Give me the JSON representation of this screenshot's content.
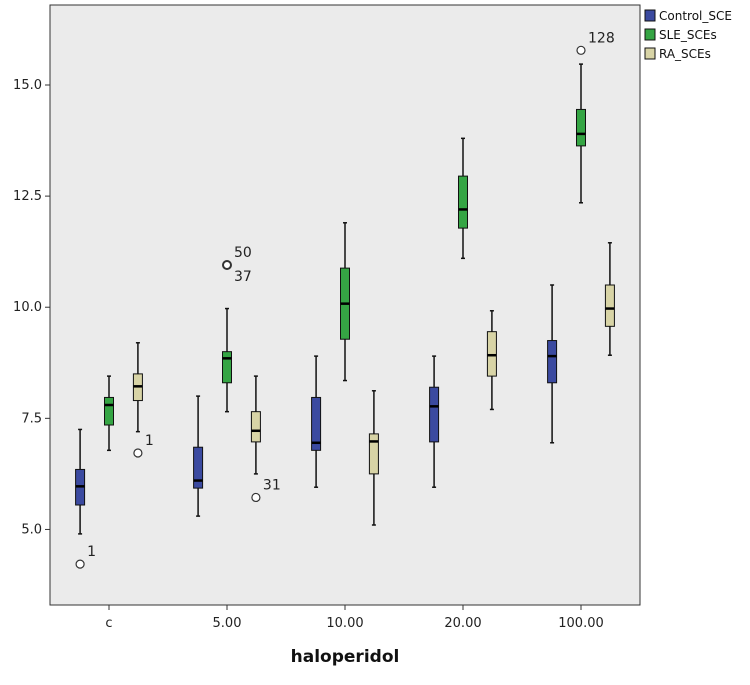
{
  "chart_data": {
    "type": "boxplot",
    "xlabel": "haloperidol",
    "ylabel": "",
    "ylim": [
      3.3,
      16.8
    ],
    "yticks": [
      "5.0",
      "7.5",
      "10.0",
      "12.5",
      "15.0"
    ],
    "ytick_values": [
      5.0,
      7.5,
      10.0,
      12.5,
      15.0
    ],
    "categories": [
      "c",
      "5.00",
      "10.00",
      "20.00",
      "100.00"
    ],
    "grid": false,
    "legend_position": "top-right",
    "plot_background": "#ebebeb",
    "series": [
      {
        "name": "Control_SCE",
        "color": "#3b4aa0",
        "boxes": [
          {
            "min": 4.9,
            "q1": 5.55,
            "median": 5.97,
            "q3": 6.35,
            "max": 7.25
          },
          {
            "min": 5.3,
            "q1": 5.93,
            "median": 6.1,
            "q3": 6.85,
            "max": 8.0
          },
          {
            "min": 5.95,
            "q1": 6.78,
            "median": 6.95,
            "q3": 7.97,
            "max": 8.9
          },
          {
            "min": 5.95,
            "q1": 6.97,
            "median": 7.77,
            "q3": 8.2,
            "max": 8.9
          },
          {
            "min": 6.95,
            "q1": 8.3,
            "median": 8.9,
            "q3": 9.25,
            "max": 10.5
          }
        ],
        "outliers": [
          {
            "category": "c",
            "value": 4.22,
            "label": "1"
          }
        ]
      },
      {
        "name": "SLE_SCEs",
        "color": "#35a544",
        "boxes": [
          {
            "min": 6.78,
            "q1": 7.35,
            "median": 7.8,
            "q3": 7.97,
            "max": 8.45
          },
          {
            "min": 7.65,
            "q1": 8.3,
            "median": 8.85,
            "q3": 9.0,
            "max": 9.97
          },
          {
            "min": 8.35,
            "q1": 9.28,
            "median": 10.08,
            "q3": 10.88,
            "max": 11.9
          },
          {
            "min": 11.1,
            "q1": 11.78,
            "median": 12.2,
            "q3": 12.95,
            "max": 13.8
          },
          {
            "min": 12.35,
            "q1": 13.63,
            "median": 13.9,
            "q3": 14.45,
            "max": 15.47
          }
        ],
        "outliers": [
          {
            "category": "5.00",
            "value": 10.95,
            "label": "50"
          },
          {
            "category": "5.00",
            "value": 10.95,
            "label": "37"
          },
          {
            "category": "100.00",
            "value": 15.78,
            "label": "128"
          }
        ]
      },
      {
        "name": "RA_SCEs",
        "color": "#d8d4a6",
        "boxes": [
          {
            "min": 7.2,
            "q1": 7.9,
            "median": 8.22,
            "q3": 8.5,
            "max": 9.2
          },
          {
            "min": 6.25,
            "q1": 6.97,
            "median": 7.22,
            "q3": 7.65,
            "max": 8.45
          },
          {
            "min": 5.1,
            "q1": 6.25,
            "median": 6.98,
            "q3": 7.15,
            "max": 8.12
          },
          {
            "min": 7.7,
            "q1": 8.45,
            "median": 8.92,
            "q3": 9.45,
            "max": 9.92
          },
          {
            "min": 8.92,
            "q1": 9.57,
            "median": 9.97,
            "q3": 10.5,
            "max": 11.45
          }
        ],
        "outliers": [
          {
            "category": "c",
            "value": 6.72,
            "label": "1"
          },
          {
            "category": "5.00",
            "value": 5.72,
            "label": "31"
          }
        ]
      }
    ]
  }
}
